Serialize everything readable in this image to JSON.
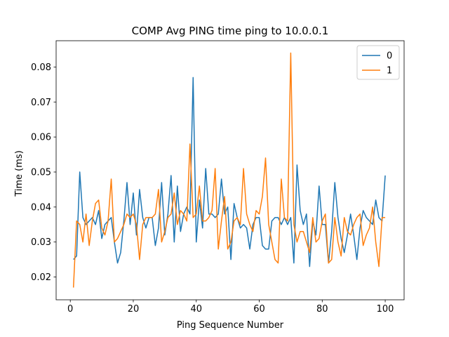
{
  "chart_data": {
    "type": "line",
    "title": "COMP Avg PING time ping to 10.0.0.1",
    "xlabel": "Ping Sequence Number",
    "ylabel": "Time (ms)",
    "xlim": [
      -4.5,
      106
    ],
    "ylim": [
      0.0135,
      0.0875
    ],
    "xticks": [
      0,
      20,
      40,
      60,
      80,
      100
    ],
    "yticks": [
      0.02,
      0.03,
      0.04,
      0.05,
      0.06,
      0.07,
      0.08
    ],
    "ytick_labels": [
      "0.02",
      "0.03",
      "0.04",
      "0.05",
      "0.06",
      "0.07",
      "0.08"
    ],
    "grid": false,
    "legend_position": "top-right",
    "series": [
      {
        "name": "0",
        "color": "#1f77b4",
        "x": [
          1,
          2,
          3,
          4,
          5,
          6,
          7,
          8,
          9,
          10,
          11,
          12,
          13,
          14,
          15,
          16,
          17,
          18,
          19,
          20,
          21,
          22,
          23,
          24,
          25,
          26,
          27,
          28,
          29,
          30,
          31,
          32,
          33,
          34,
          35,
          36,
          37,
          38,
          39,
          40,
          41,
          42,
          43,
          44,
          45,
          46,
          47,
          48,
          49,
          50,
          51,
          52,
          53,
          54,
          55,
          56,
          57,
          58,
          59,
          60,
          61,
          62,
          63,
          64,
          65,
          66,
          67,
          68,
          69,
          70,
          71,
          72,
          73,
          74,
          75,
          76,
          77,
          78,
          79,
          80,
          81,
          82,
          83,
          84,
          85,
          86,
          87,
          88,
          89,
          90,
          91,
          92,
          93,
          94,
          95,
          96,
          97,
          98,
          99,
          100
        ],
        "values": [
          0.025,
          0.026,
          0.05,
          0.037,
          0.035,
          0.036,
          0.037,
          0.035,
          0.039,
          0.031,
          0.035,
          0.036,
          0.037,
          0.03,
          0.024,
          0.027,
          0.036,
          0.047,
          0.035,
          0.044,
          0.032,
          0.045,
          0.037,
          0.034,
          0.037,
          0.037,
          0.029,
          0.034,
          0.047,
          0.032,
          0.038,
          0.049,
          0.03,
          0.046,
          0.033,
          0.038,
          0.04,
          0.038,
          0.077,
          0.03,
          0.042,
          0.034,
          0.051,
          0.038,
          0.038,
          0.037,
          0.038,
          0.048,
          0.038,
          0.04,
          0.025,
          0.041,
          0.037,
          0.034,
          0.035,
          0.034,
          0.028,
          0.035,
          0.037,
          0.037,
          0.029,
          0.028,
          0.028,
          0.036,
          0.037,
          0.037,
          0.035,
          0.037,
          0.035,
          0.037,
          0.024,
          0.052,
          0.039,
          0.035,
          0.038,
          0.023,
          0.036,
          0.032,
          0.046,
          0.035,
          0.035,
          0.024,
          0.033,
          0.047,
          0.037,
          0.031,
          0.027,
          0.032,
          0.038,
          0.032,
          0.025,
          0.034,
          0.039,
          0.037,
          0.036,
          0.035,
          0.042,
          0.037,
          0.036,
          0.049
        ]
      },
      {
        "name": "1",
        "color": "#ff7f0e",
        "x": [
          1,
          2,
          3,
          4,
          5,
          6,
          7,
          8,
          9,
          10,
          11,
          12,
          13,
          14,
          15,
          16,
          17,
          18,
          19,
          20,
          21,
          22,
          23,
          24,
          25,
          26,
          27,
          28,
          29,
          30,
          31,
          32,
          33,
          34,
          35,
          36,
          37,
          38,
          39,
          40,
          41,
          42,
          43,
          44,
          45,
          46,
          47,
          48,
          49,
          50,
          51,
          52,
          53,
          54,
          55,
          56,
          57,
          58,
          59,
          60,
          61,
          62,
          63,
          64,
          65,
          66,
          67,
          68,
          69,
          70,
          71,
          72,
          73,
          74,
          75,
          76,
          77,
          78,
          79,
          80,
          81,
          82,
          83,
          84,
          85,
          86,
          87,
          88,
          89,
          90,
          91,
          92,
          93,
          94,
          95,
          96,
          97,
          98,
          99,
          100
        ],
        "values": [
          0.017,
          0.036,
          0.035,
          0.03,
          0.038,
          0.029,
          0.036,
          0.041,
          0.042,
          0.034,
          0.032,
          0.036,
          0.048,
          0.03,
          0.031,
          0.033,
          0.035,
          0.038,
          0.037,
          0.038,
          0.035,
          0.025,
          0.035,
          0.037,
          0.037,
          0.037,
          0.038,
          0.045,
          0.03,
          0.033,
          0.037,
          0.038,
          0.044,
          0.035,
          0.039,
          0.038,
          0.036,
          0.058,
          0.037,
          0.038,
          0.046,
          0.036,
          0.036,
          0.037,
          0.039,
          0.051,
          0.028,
          0.036,
          0.043,
          0.028,
          0.03,
          0.036,
          0.037,
          0.035,
          0.051,
          0.038,
          0.035,
          0.033,
          0.039,
          0.038,
          0.043,
          0.054,
          0.035,
          0.03,
          0.025,
          0.024,
          0.048,
          0.037,
          0.036,
          0.084,
          0.035,
          0.03,
          0.033,
          0.033,
          0.03,
          0.027,
          0.037,
          0.03,
          0.031,
          0.036,
          0.038,
          0.024,
          0.025,
          0.037,
          0.03,
          0.026,
          0.037,
          0.033,
          0.032,
          0.035,
          0.037,
          0.038,
          0.029,
          0.032,
          0.034,
          0.04,
          0.03,
          0.023,
          0.037,
          0.037
        ]
      }
    ]
  }
}
